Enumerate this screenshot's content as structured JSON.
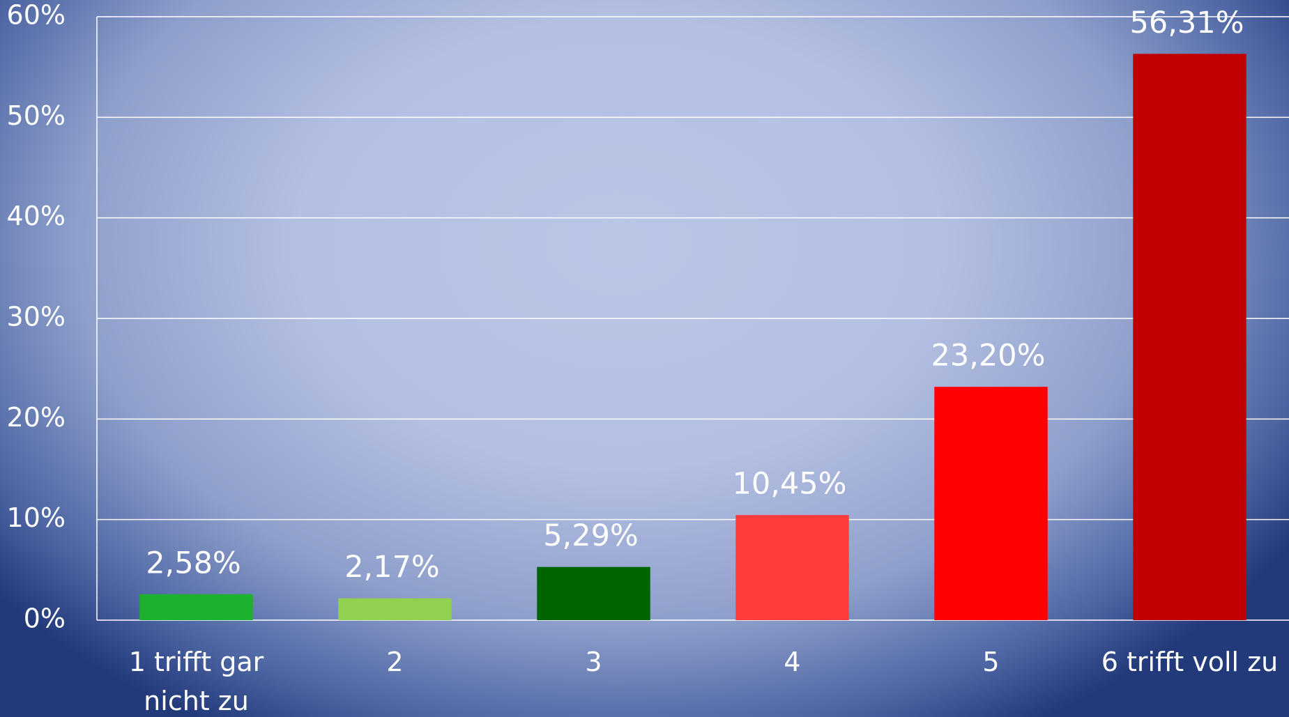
{
  "chart_data": {
    "type": "bar",
    "categories": [
      "1 trifft gar nicht zu",
      "2",
      "3",
      "4",
      "5",
      "6 trifft voll zu"
    ],
    "values": [
      2.58,
      2.17,
      5.29,
      10.45,
      23.2,
      56.31
    ],
    "value_labels": [
      "2,58%",
      "2,17%",
      "5,29%",
      "10,45%",
      "23,20%",
      "56,31%"
    ],
    "colors": [
      "#1db22d",
      "#92d050",
      "#006400",
      "#ff3b3b",
      "#ff0000",
      "#c00000"
    ],
    "ylim": [
      0,
      60
    ],
    "yticks": [
      {
        "value": 0,
        "label": "0%"
      },
      {
        "value": 10,
        "label": "10%"
      },
      {
        "value": 20,
        "label": "20%"
      },
      {
        "value": 30,
        "label": "30%"
      },
      {
        "value": 40,
        "label": "40%"
      },
      {
        "value": 50,
        "label": "50%"
      },
      {
        "value": 60,
        "label": "60%"
      }
    ],
    "grid": true
  }
}
